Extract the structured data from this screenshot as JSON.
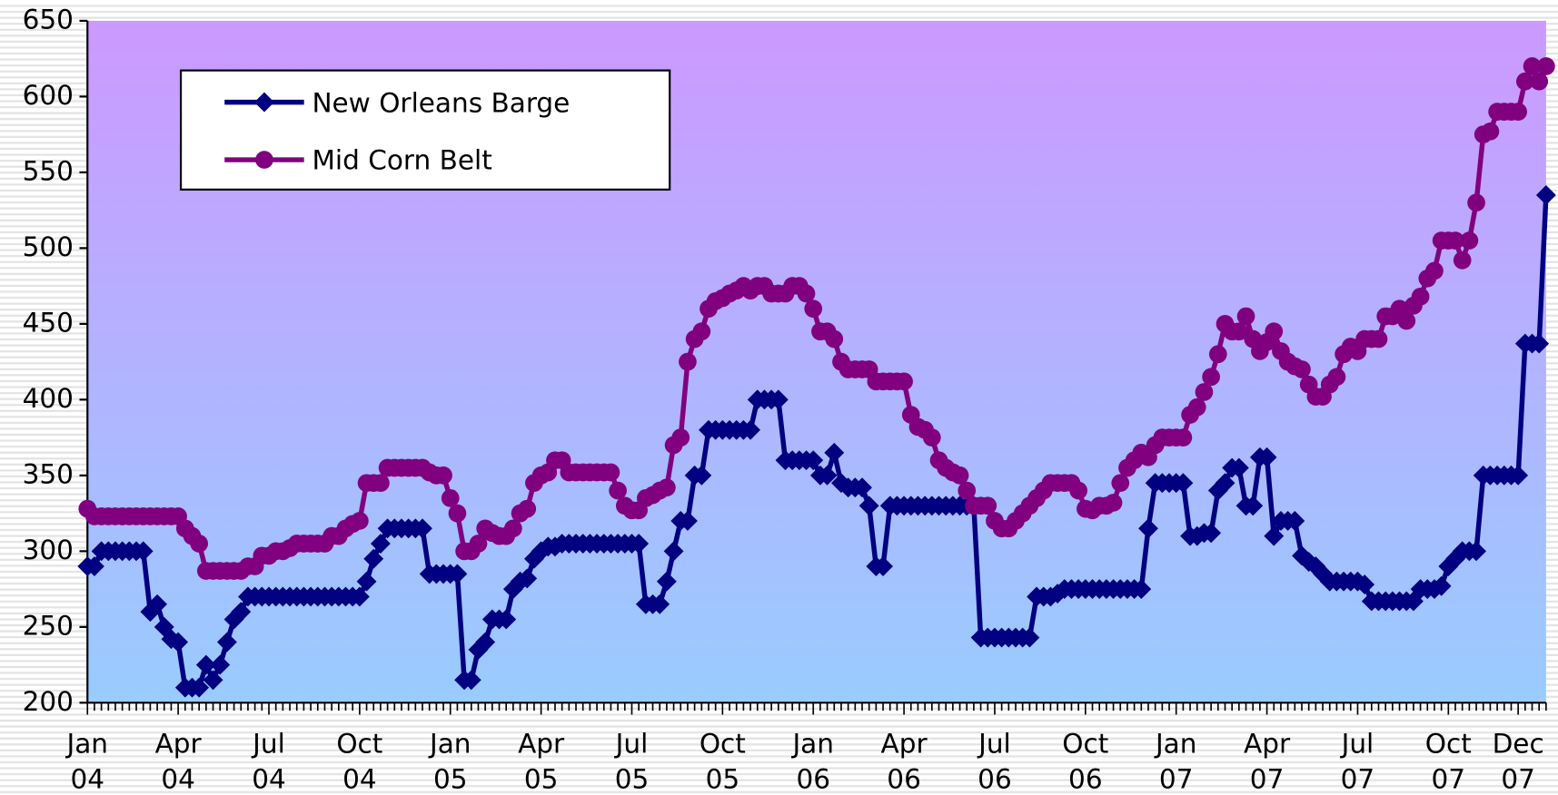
{
  "chart_data": {
    "type": "line",
    "categories": [
      "Jan 04",
      null,
      null,
      null,
      null,
      null,
      null,
      null,
      null,
      null,
      null,
      null,
      null,
      "Apr 04",
      null,
      null,
      null,
      null,
      null,
      null,
      null,
      null,
      null,
      null,
      null,
      null,
      "Jul 04",
      null,
      null,
      null,
      null,
      null,
      null,
      null,
      null,
      null,
      null,
      null,
      null,
      "Oct 04",
      null,
      null,
      null,
      null,
      null,
      null,
      null,
      null,
      null,
      null,
      null,
      null,
      "Jan 05",
      null,
      null,
      null,
      null,
      null,
      null,
      null,
      null,
      null,
      null,
      null,
      null,
      "Apr 05",
      null,
      null,
      null,
      null,
      null,
      null,
      null,
      null,
      null,
      null,
      null,
      null,
      "Jul 05",
      null,
      null,
      null,
      null,
      null,
      null,
      null,
      null,
      null,
      null,
      null,
      null,
      "Oct 05",
      null,
      null,
      null,
      null,
      null,
      null,
      null,
      null,
      null,
      null,
      null,
      null,
      "Jan 06",
      null,
      null,
      null,
      null,
      null,
      null,
      null,
      null,
      null,
      null,
      null,
      null,
      "Apr 06",
      null,
      null,
      null,
      null,
      null,
      null,
      null,
      null,
      null,
      null,
      null,
      null,
      "Jul 06",
      null,
      null,
      null,
      null,
      null,
      null,
      null,
      null,
      null,
      null,
      null,
      null,
      "Oct 06",
      null,
      null,
      null,
      null,
      null,
      null,
      null,
      null,
      null,
      null,
      null,
      null,
      "Jan 07",
      null,
      null,
      null,
      null,
      null,
      null,
      null,
      null,
      null,
      null,
      null,
      null,
      "Apr 07",
      null,
      null,
      null,
      null,
      null,
      null,
      null,
      null,
      null,
      null,
      null,
      null,
      "Jul 07",
      null,
      null,
      null,
      null,
      null,
      null,
      null,
      null,
      null,
      null,
      null,
      null,
      "Oct 07",
      null,
      null,
      null,
      null,
      null,
      null,
      null,
      null,
      null,
      "Dec 07",
      null,
      null,
      null,
      null
    ],
    "series": [
      {
        "name": "New Orleans Barge",
        "color": "#000080",
        "marker": "diamond",
        "values": [
          290,
          290,
          300,
          300,
          300,
          300,
          300,
          300,
          300,
          260,
          265,
          250,
          242,
          240,
          210,
          210,
          210,
          225,
          215,
          225,
          240,
          255,
          260,
          270,
          270,
          270,
          270,
          270,
          270,
          270,
          270,
          270,
          270,
          270,
          270,
          270,
          270,
          270,
          270,
          270,
          280,
          295,
          305,
          315,
          315,
          315,
          315,
          315,
          315,
          285,
          285,
          285,
          285,
          285,
          215,
          215,
          235,
          240,
          255,
          255,
          255,
          275,
          280,
          282,
          295,
          300,
          303,
          303,
          305,
          305,
          305,
          305,
          305,
          305,
          305,
          305,
          305,
          305,
          305,
          305,
          265,
          265,
          265,
          280,
          300,
          320,
          320,
          350,
          350,
          380,
          380,
          380,
          380,
          380,
          380,
          380,
          400,
          400,
          400,
          400,
          360,
          360,
          360,
          360,
          360,
          350,
          350,
          365,
          345,
          342,
          342,
          342,
          330,
          290,
          290,
          330,
          330,
          330,
          330,
          330,
          330,
          330,
          330,
          330,
          330,
          330,
          330,
          330,
          243,
          243,
          243,
          243,
          243,
          243,
          243,
          243,
          270,
          270,
          270,
          272,
          275,
          275,
          275,
          275,
          275,
          275,
          275,
          275,
          275,
          275,
          275,
          275,
          315,
          345,
          345,
          345,
          345,
          345,
          310,
          310,
          312,
          312,
          340,
          345,
          355,
          355,
          330,
          330,
          362,
          362,
          310,
          320,
          320,
          320,
          297,
          293,
          290,
          285,
          280,
          280,
          280,
          280,
          280,
          278,
          267,
          267,
          267,
          267,
          267,
          267,
          267,
          275,
          275,
          275,
          277,
          290,
          295,
          300,
          300,
          300,
          350,
          350,
          350,
          350,
          350,
          350,
          437,
          437,
          437,
          535
        ]
      },
      {
        "name": "Mid Corn Belt",
        "color": "#800080",
        "marker": "circle",
        "values": [
          328,
          323,
          323,
          323,
          323,
          323,
          323,
          323,
          323,
          323,
          323,
          323,
          323,
          323,
          315,
          310,
          305,
          287,
          287,
          287,
          287,
          287,
          287,
          290,
          290,
          297,
          297,
          300,
          300,
          302,
          305,
          305,
          305,
          305,
          305,
          310,
          310,
          315,
          318,
          320,
          345,
          345,
          345,
          355,
          355,
          355,
          355,
          355,
          355,
          352,
          350,
          350,
          335,
          325,
          300,
          300,
          305,
          315,
          312,
          310,
          310,
          315,
          325,
          328,
          345,
          350,
          352,
          360,
          360,
          352,
          352,
          352,
          352,
          352,
          352,
          352,
          340,
          330,
          327,
          327,
          335,
          337,
          340,
          342,
          370,
          375,
          425,
          440,
          445,
          460,
          465,
          467,
          470,
          472,
          475,
          472,
          475,
          475,
          470,
          470,
          470,
          475,
          475,
          470,
          460,
          445,
          445,
          440,
          425,
          420,
          420,
          420,
          420,
          412,
          412,
          412,
          412,
          412,
          390,
          382,
          380,
          375,
          360,
          355,
          352,
          350,
          340,
          330,
          330,
          330,
          320,
          315,
          315,
          320,
          325,
          330,
          335,
          340,
          345,
          345,
          345,
          345,
          340,
          328,
          327,
          330,
          330,
          332,
          345,
          355,
          360,
          365,
          362,
          370,
          375,
          375,
          375,
          375,
          390,
          395,
          405,
          415,
          430,
          450,
          445,
          445,
          455,
          440,
          432,
          438,
          445,
          432,
          425,
          422,
          420,
          410,
          402,
          402,
          410,
          415,
          430,
          435,
          432,
          440,
          440,
          440,
          455,
          455,
          460,
          452,
          462,
          468,
          480,
          485,
          505,
          505,
          505,
          492,
          505,
          530,
          575,
          577,
          590,
          590,
          590,
          590,
          610,
          620,
          610,
          620
        ]
      }
    ],
    "ylim": [
      200,
      650
    ],
    "yticks": [
      200,
      250,
      300,
      350,
      400,
      450,
      500,
      550,
      600,
      650
    ],
    "legend": "upper left"
  }
}
